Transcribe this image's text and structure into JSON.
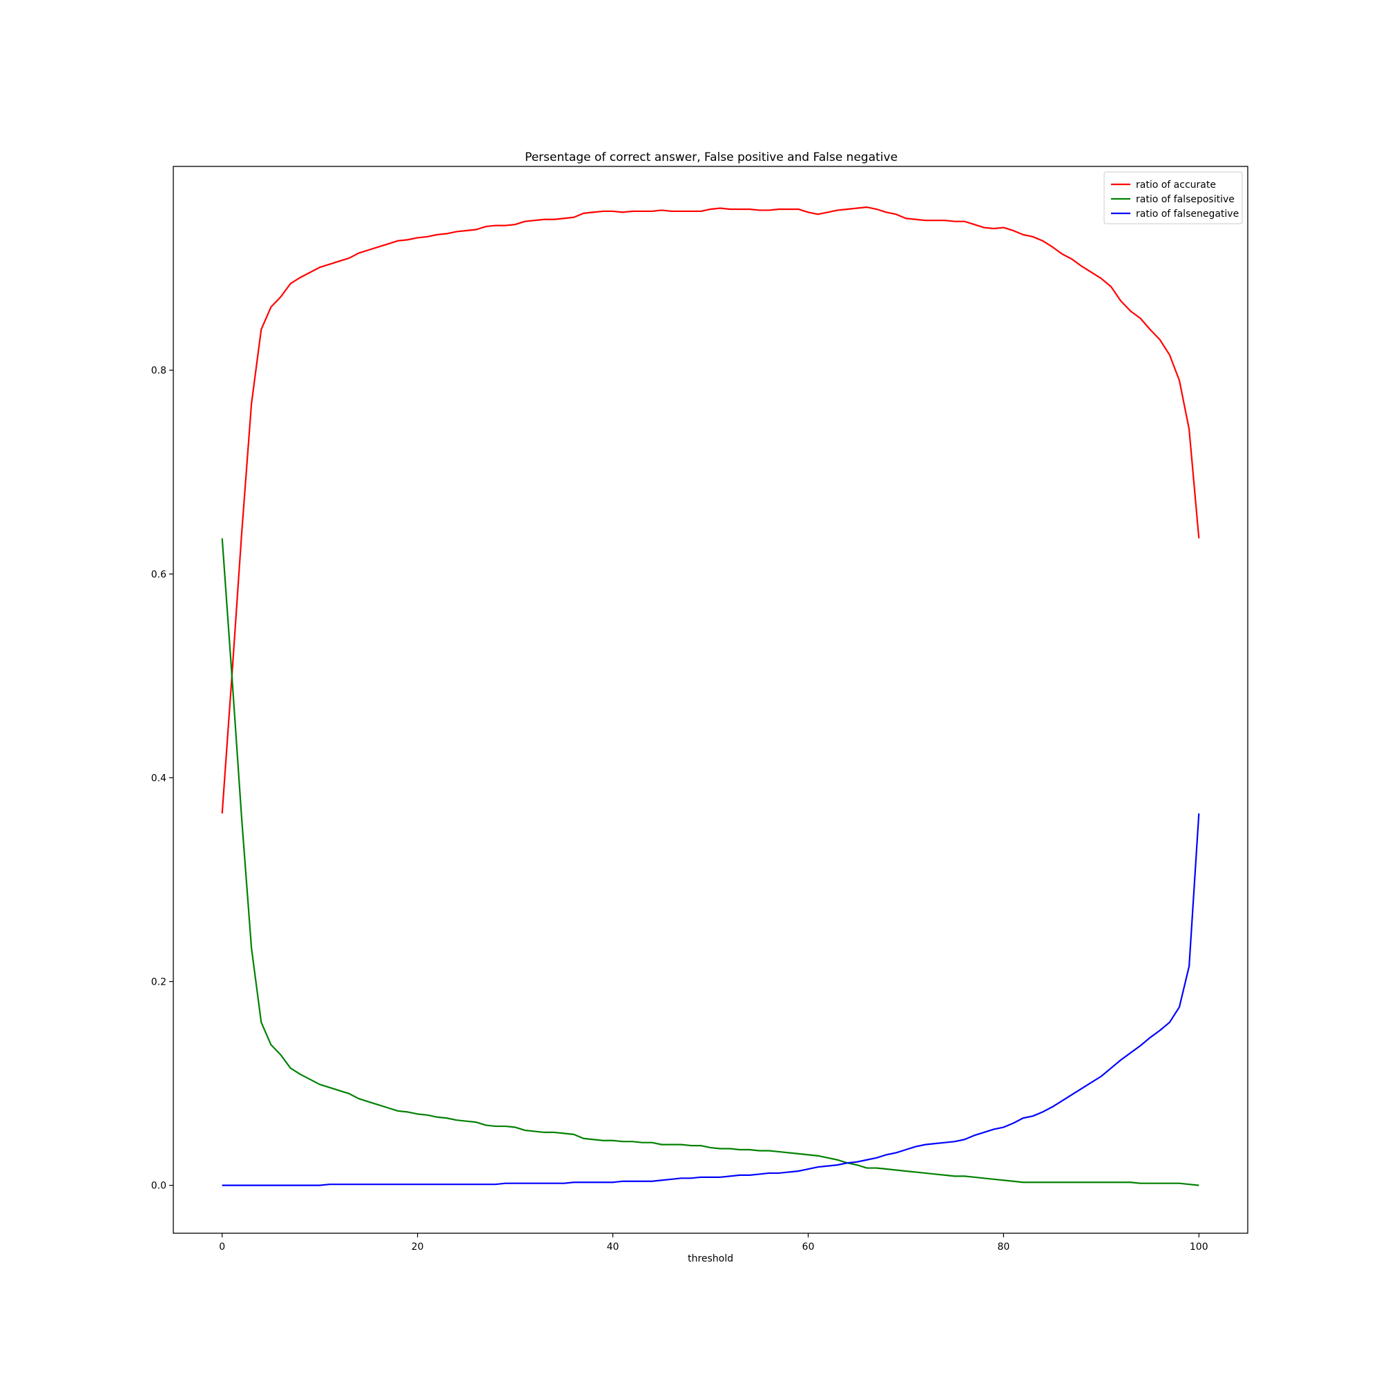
{
  "chart_data": {
    "type": "line",
    "title": "Persentage of correct answer, False positive and False negative",
    "xlabel": "threshold",
    "ylabel": "",
    "xlim": [
      -5,
      105
    ],
    "ylim": [
      -0.047,
      1.0
    ],
    "xticks": [
      0,
      20,
      40,
      60,
      80,
      100
    ],
    "yticks": [
      0.0,
      0.2,
      0.4,
      0.6,
      0.8
    ],
    "grid": false,
    "legend_position": "top-right",
    "x": [
      0,
      1,
      2,
      3,
      4,
      5,
      6,
      7,
      8,
      9,
      10,
      11,
      12,
      13,
      14,
      15,
      16,
      17,
      18,
      19,
      20,
      21,
      22,
      23,
      24,
      25,
      26,
      27,
      28,
      29,
      30,
      31,
      32,
      33,
      34,
      35,
      36,
      37,
      38,
      39,
      40,
      41,
      42,
      43,
      44,
      45,
      46,
      47,
      48,
      49,
      50,
      51,
      52,
      53,
      54,
      55,
      56,
      57,
      58,
      59,
      60,
      61,
      62,
      63,
      64,
      65,
      66,
      67,
      68,
      69,
      70,
      71,
      72,
      73,
      74,
      75,
      76,
      77,
      78,
      79,
      80,
      81,
      82,
      83,
      84,
      85,
      86,
      87,
      88,
      89,
      90,
      91,
      92,
      93,
      94,
      95,
      96,
      97,
      98,
      99,
      100
    ],
    "series": [
      {
        "name": "ratio of accurate",
        "color": "#ff0000",
        "values": [
          0.365,
          0.5,
          0.64,
          0.767,
          0.84,
          0.862,
          0.872,
          0.885,
          0.891,
          0.896,
          0.901,
          0.904,
          0.907,
          0.91,
          0.915,
          0.918,
          0.921,
          0.924,
          0.927,
          0.928,
          0.93,
          0.931,
          0.933,
          0.934,
          0.936,
          0.937,
          0.938,
          0.941,
          0.942,
          0.942,
          0.943,
          0.946,
          0.947,
          0.948,
          0.948,
          0.949,
          0.95,
          0.954,
          0.955,
          0.956,
          0.956,
          0.955,
          0.956,
          0.956,
          0.956,
          0.957,
          0.956,
          0.956,
          0.956,
          0.956,
          0.958,
          0.959,
          0.958,
          0.958,
          0.958,
          0.957,
          0.957,
          0.958,
          0.958,
          0.958,
          0.955,
          0.953,
          0.955,
          0.957,
          0.958,
          0.959,
          0.96,
          0.958,
          0.955,
          0.953,
          0.949,
          0.948,
          0.947,
          0.947,
          0.947,
          0.946,
          0.946,
          0.943,
          0.94,
          0.939,
          0.94,
          0.937,
          0.933,
          0.931,
          0.927,
          0.921,
          0.914,
          0.909,
          0.902,
          0.896,
          0.89,
          0.882,
          0.868,
          0.858,
          0.851,
          0.84,
          0.83,
          0.815,
          0.79,
          0.742,
          0.635
        ]
      },
      {
        "name": "ratio of falsepositive",
        "color": "#008000",
        "values": [
          0.635,
          0.5,
          0.36,
          0.233,
          0.16,
          0.138,
          0.128,
          0.115,
          0.109,
          0.104,
          0.099,
          0.096,
          0.093,
          0.09,
          0.085,
          0.082,
          0.079,
          0.076,
          0.073,
          0.072,
          0.07,
          0.069,
          0.067,
          0.066,
          0.064,
          0.063,
          0.062,
          0.059,
          0.058,
          0.058,
          0.057,
          0.054,
          0.053,
          0.052,
          0.052,
          0.051,
          0.05,
          0.046,
          0.045,
          0.044,
          0.044,
          0.043,
          0.043,
          0.042,
          0.042,
          0.04,
          0.04,
          0.04,
          0.039,
          0.039,
          0.037,
          0.036,
          0.036,
          0.035,
          0.035,
          0.034,
          0.034,
          0.033,
          0.032,
          0.031,
          0.03,
          0.029,
          0.027,
          0.025,
          0.022,
          0.02,
          0.017,
          0.017,
          0.016,
          0.015,
          0.014,
          0.013,
          0.012,
          0.011,
          0.01,
          0.009,
          0.009,
          0.008,
          0.007,
          0.006,
          0.005,
          0.004,
          0.003,
          0.003,
          0.003,
          0.003,
          0.003,
          0.003,
          0.003,
          0.003,
          0.003,
          0.003,
          0.003,
          0.003,
          0.002,
          0.002,
          0.002,
          0.002,
          0.002,
          0.001,
          0.0
        ]
      },
      {
        "name": "ratio of falsenegative",
        "color": "#0000ff",
        "values": [
          0.0,
          0.0,
          0.0,
          0.0,
          0.0,
          0.0,
          0.0,
          0.0,
          0.0,
          0.0,
          0.0,
          0.001,
          0.001,
          0.001,
          0.001,
          0.001,
          0.001,
          0.001,
          0.001,
          0.001,
          0.001,
          0.001,
          0.001,
          0.001,
          0.001,
          0.001,
          0.001,
          0.001,
          0.001,
          0.002,
          0.002,
          0.002,
          0.002,
          0.002,
          0.002,
          0.002,
          0.003,
          0.003,
          0.003,
          0.003,
          0.003,
          0.004,
          0.004,
          0.004,
          0.004,
          0.005,
          0.006,
          0.007,
          0.007,
          0.008,
          0.008,
          0.008,
          0.009,
          0.01,
          0.01,
          0.011,
          0.012,
          0.012,
          0.013,
          0.014,
          0.016,
          0.018,
          0.019,
          0.02,
          0.022,
          0.023,
          0.025,
          0.027,
          0.03,
          0.032,
          0.035,
          0.038,
          0.04,
          0.041,
          0.042,
          0.043,
          0.045,
          0.049,
          0.052,
          0.055,
          0.057,
          0.061,
          0.066,
          0.068,
          0.072,
          0.077,
          0.083,
          0.089,
          0.095,
          0.101,
          0.107,
          0.115,
          0.123,
          0.13,
          0.137,
          0.145,
          0.152,
          0.16,
          0.175,
          0.215,
          0.365
        ]
      }
    ]
  }
}
